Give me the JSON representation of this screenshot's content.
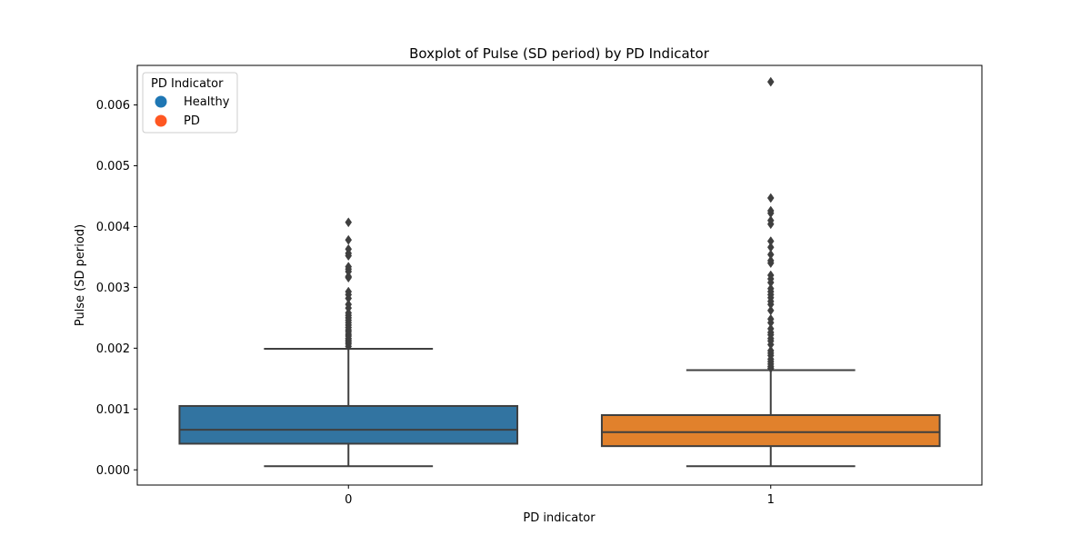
{
  "chart_data": {
    "type": "box",
    "title": "Boxplot of Pulse (SD period) by PD Indicator",
    "xlabel": "PD indicator",
    "ylabel": "Pulse (SD period)",
    "categories": [
      "0",
      "1"
    ],
    "ylim": [
      -0.00025,
      0.00665
    ],
    "yticks": [
      0.0,
      0.001,
      0.002,
      0.003,
      0.004,
      0.005,
      0.006
    ],
    "ytick_labels": [
      "0.000",
      "0.001",
      "0.002",
      "0.003",
      "0.004",
      "0.005",
      "0.006"
    ],
    "grid": false,
    "legend": {
      "title": "PD Indicator",
      "placement": "top-left",
      "entries": [
        {
          "label": "Healthy",
          "color": "#1f77b4"
        },
        {
          "label": "PD",
          "color": "#ff5722"
        }
      ]
    },
    "boxes": [
      {
        "category": "0",
        "color": "#3274a1",
        "whisker_low": 6e-05,
        "q1": 0.00043,
        "median": 0.00066,
        "q3": 0.00105,
        "whisker_high": 0.00199,
        "outliers": [
          0.00203,
          0.00207,
          0.0021,
          0.00213,
          0.00216,
          0.0022,
          0.00223,
          0.00227,
          0.0023,
          0.00234,
          0.00238,
          0.00242,
          0.00246,
          0.0025,
          0.00254,
          0.00258,
          0.00266,
          0.00272,
          0.00282,
          0.00288,
          0.00293,
          0.00316,
          0.00318,
          0.00326,
          0.0033,
          0.00334,
          0.00352,
          0.00356,
          0.00363,
          0.00378,
          0.00407
        ]
      },
      {
        "category": "1",
        "color": "#e1812c",
        "whisker_low": 6e-05,
        "q1": 0.00039,
        "median": 0.00062,
        "q3": 0.0009,
        "whisker_high": 0.00164,
        "outliers": [
          0.00167,
          0.0017,
          0.00174,
          0.00178,
          0.00182,
          0.00188,
          0.00192,
          0.00196,
          0.00206,
          0.00212,
          0.00216,
          0.00222,
          0.00226,
          0.00232,
          0.00242,
          0.00248,
          0.00262,
          0.00272,
          0.00277,
          0.00283,
          0.00288,
          0.00293,
          0.00298,
          0.00308,
          0.00314,
          0.0032,
          0.0034,
          0.00344,
          0.00354,
          0.00366,
          0.00376,
          0.00404,
          0.0041,
          0.00422,
          0.00426,
          0.00447,
          0.00638
        ]
      }
    ]
  }
}
